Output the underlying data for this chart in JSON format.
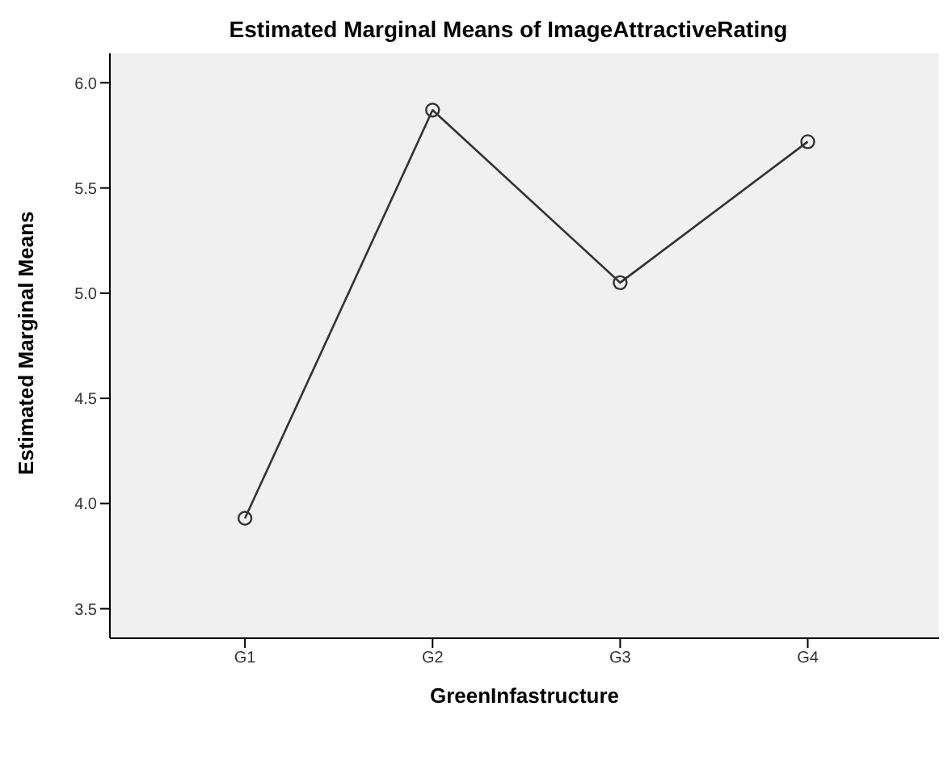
{
  "chart_data": {
    "type": "line",
    "title": "Estimated Marginal Means of ImageAttractiveRating",
    "xlabel": "GreenInfastructure",
    "ylabel": "Estimated Marginal Means",
    "categories": [
      "G1",
      "G2",
      "G3",
      "G4"
    ],
    "series": [
      {
        "color": "#333333",
        "values": [
          3.93,
          5.87,
          5.05,
          5.72
        ]
      }
    ],
    "ylim": [
      3.36,
      6.14
    ],
    "yticks": [
      3.5,
      {
        "value": 4,
        "label": "4.0"
      },
      4.5,
      {
        "value": 5,
        "label": "5.0"
      },
      5.5,
      {
        "value": 6,
        "label": "6.0"
      }
    ],
    "grid": false,
    "legend": false,
    "marker": "circle",
    "line_style": "solid"
  }
}
